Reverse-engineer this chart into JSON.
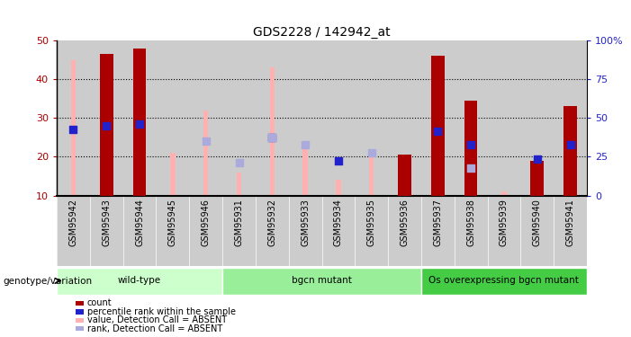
{
  "title": "GDS2228 / 142942_at",
  "samples": [
    "GSM95942",
    "GSM95943",
    "GSM95944",
    "GSM95945",
    "GSM95946",
    "GSM95931",
    "GSM95932",
    "GSM95933",
    "GSM95934",
    "GSM95935",
    "GSM95936",
    "GSM95937",
    "GSM95938",
    "GSM95939",
    "GSM95940",
    "GSM95941"
  ],
  "red_bars": [
    0,
    46.5,
    48,
    0,
    0,
    0,
    0,
    0,
    0,
    0,
    20.5,
    46,
    34.5,
    0,
    19,
    33
  ],
  "pink_bars": [
    45,
    0,
    0,
    21,
    32,
    16,
    43,
    23,
    14,
    22,
    0,
    0,
    0,
    11,
    0,
    0
  ],
  "blue_squares": [
    27,
    28,
    28.5,
    0,
    0,
    0,
    25,
    0,
    19,
    0,
    0,
    26.5,
    23,
    0,
    19.5,
    23
  ],
  "light_blue_squares": [
    0,
    0,
    0,
    0,
    24,
    18.5,
    25,
    23,
    0,
    21,
    0,
    0,
    17,
    0,
    0,
    0
  ],
  "groups": [
    {
      "label": "wild-type",
      "start": 0,
      "end": 5,
      "color": "#ccffcc"
    },
    {
      "label": "bgcn mutant",
      "start": 5,
      "end": 11,
      "color": "#99ee99"
    },
    {
      "label": "Os overexpressing bgcn mutant",
      "start": 11,
      "end": 16,
      "color": "#44cc44"
    }
  ],
  "ylim": [
    10,
    50
  ],
  "y2lim": [
    0,
    100
  ],
  "yticks": [
    10,
    20,
    30,
    40,
    50
  ],
  "y2ticks": [
    0,
    25,
    50,
    75,
    100
  ],
  "y2ticklabels": [
    "0",
    "25",
    "50",
    "75",
    "100%"
  ],
  "red_bar_width": 0.4,
  "pink_bar_width": 0.15,
  "blue_size": 30,
  "red_color": "#aa0000",
  "pink_color": "#ffb0b0",
  "blue_color": "#2222cc",
  "light_blue_color": "#aaaadd",
  "background_plot": "#ffffff",
  "background_samples": "#cccccc",
  "legend_labels": [
    "count",
    "percentile rank within the sample",
    "value, Detection Call = ABSENT",
    "rank, Detection Call = ABSENT"
  ]
}
